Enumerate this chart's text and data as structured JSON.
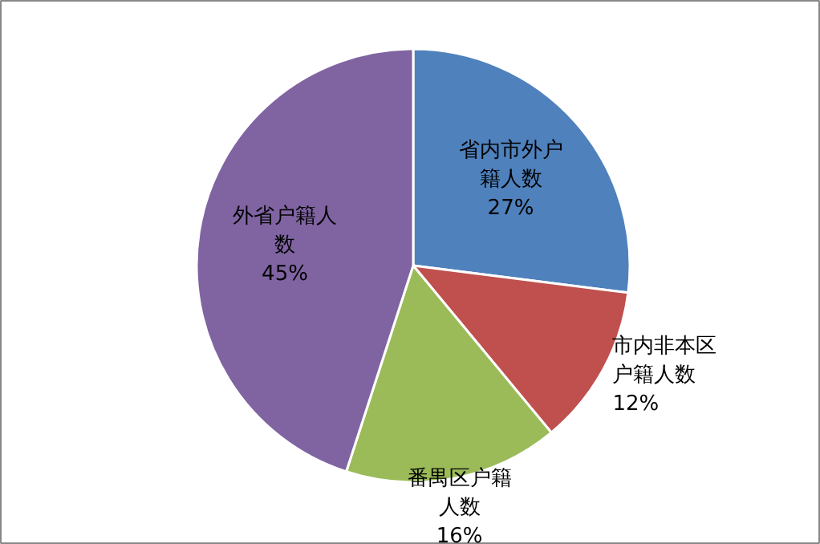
{
  "chart_data": {
    "type": "pie",
    "categories": [
      "省内市外户籍人数",
      "市内非本区户籍人数",
      "番禺区户籍人数",
      "外省户籍人数"
    ],
    "values": [
      27,
      12,
      16,
      45
    ],
    "colors": [
      "#4f81bd",
      "#c0504d",
      "#9bbb59",
      "#8064a2"
    ],
    "value_labels": [
      "27%",
      "12%",
      "16%",
      "45%"
    ]
  }
}
